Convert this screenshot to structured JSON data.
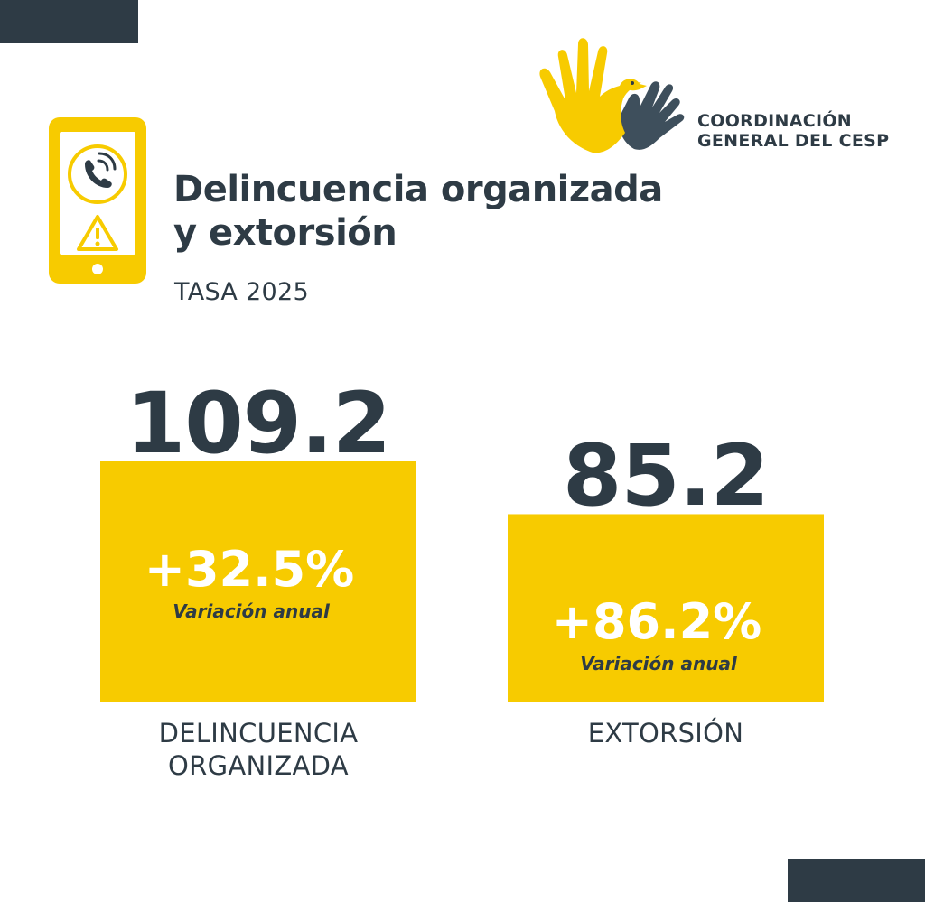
{
  "logo": {
    "line1": "COORDINACIÓN",
    "line2": "GENERAL DEL CESP"
  },
  "title": {
    "line1": "Delincuencia organizada",
    "line2": "y extorsión"
  },
  "subtitle": "TASA 2025",
  "icons": {
    "main": "smartphone-call-warning-icon",
    "logo": "hands-dove-icon"
  },
  "colors": {
    "accent": "#f7cb00",
    "dark": "#2e3b45",
    "background": "#ffffff",
    "variation_text": "#ffffff"
  },
  "chart_data": {
    "type": "bar",
    "categories": [
      "DELINCUENCIA ORGANIZADA",
      "EXTORSIÓN"
    ],
    "category_lines": [
      [
        "DELINCUENCIA",
        "ORGANIZADA"
      ],
      [
        "EXTORSIÓN"
      ]
    ],
    "values": [
      109.2,
      85.2
    ],
    "value_labels": [
      "109.2",
      "85.2"
    ],
    "variations": [
      "+32.5%",
      "+86.2%"
    ],
    "variation_label": "Variación anual",
    "title": "",
    "xlabel": "",
    "ylabel": "",
    "grid": false
  }
}
